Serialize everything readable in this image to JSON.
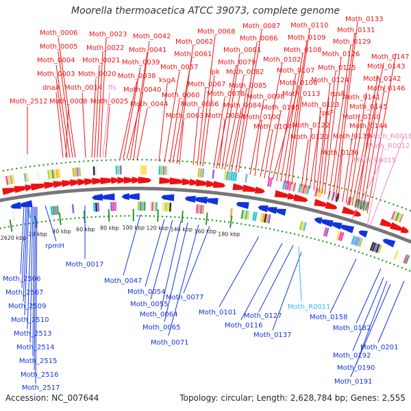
{
  "header": {
    "title": "Moorella thermoacetica ATCC 39073, complete genome"
  },
  "footer": {
    "accession": "Accession: NC_007644",
    "summary": "Topology: circular; Length: 2,628,784 bp; Genes: 2,555"
  },
  "colors": {
    "forward": "#ee1111",
    "reverse": "#1133dd",
    "rna": "#ee88bb",
    "rna_reverse": "#33bbee",
    "tick": "#2a9a2a",
    "backbone": "#777777"
  },
  "tick_labels": [
    "2620 kbp",
    "20 kbp",
    "40 kbp",
    "60 kbp",
    "80 kbp",
    "100 kbp",
    "120 kbp",
    "140 kbp",
    "160 kbp",
    "180 kbp"
  ],
  "top_labels": [
    "Moth_2512",
    "Moth_0008",
    "dnaA",
    "Moth_0003",
    "Moth_0004",
    "Moth_0005",
    "Moth_0006",
    "Moth_0014",
    "Moth_0020",
    "Moth_0021",
    "Moth_0022",
    "Moth_0023",
    "ffs",
    "Moth_0025",
    "Moth_0038",
    "Moth_0039",
    "Moth_0040",
    "Moth_0041",
    "Moth_0042",
    "Moth_0044",
    "ksgA",
    "Moth_0057",
    "Moth_0060",
    "Moth_0061",
    "Moth_0062",
    "Moth_0063",
    "Moth_0066",
    "Moth_0067",
    "Moth_0068",
    "ipk",
    "Moth_0078",
    "Moth_0079",
    "Moth_0080",
    "Moth_0081",
    "Moth_0082",
    "Moth_0084",
    "Moth_0085",
    "Moth_0086",
    "Moth_0087",
    "Moth_0098",
    "Moth_0100",
    "Moth_0102",
    "Moth_0104",
    "Moth_0105",
    "Moth_0106",
    "Moth_0107",
    "Moth_0108",
    "Moth_0109",
    "Moth_0110",
    "Moth_0113",
    "Moth_0120",
    "Moth_0122",
    "rpsF",
    "Moth_0123",
    "Moth_0124",
    "rpsR",
    "Moth_0125",
    "Moth_0126",
    "Moth_0129",
    "Moth_0131",
    "Moth_0133",
    "Moth_0136",
    "Moth_0139",
    "Moth_0140",
    "Moth_0141",
    "Moth_0142",
    "Moth_0143",
    "Moth_0144",
    "Moth_0145",
    "Moth_0146",
    "Moth_0147",
    "Moth_R0012",
    "Moth_R0015",
    "Moth_R0016"
  ],
  "bottom_labels": [
    "Moth_2506",
    "Moth_2507",
    "Moth_2509",
    "Moth_2510",
    "Moth_2513",
    "Moth_2514",
    "Moth_2515",
    "Moth_2516",
    "Moth_2517",
    "rpmH",
    "Moth_0017",
    "Moth_0047",
    "Moth_0054",
    "Moth_0055",
    "Moth_0064",
    "Moth_0065",
    "Moth_0071",
    "Moth_0077",
    "Moth_0101",
    "Moth_0116",
    "Moth_0127",
    "Moth_0137",
    "Moth_R0011",
    "Moth_0158",
    "Moth_0182",
    "Moth_0192",
    "Moth_0190",
    "Moth_0191",
    "Moth_0201"
  ]
}
